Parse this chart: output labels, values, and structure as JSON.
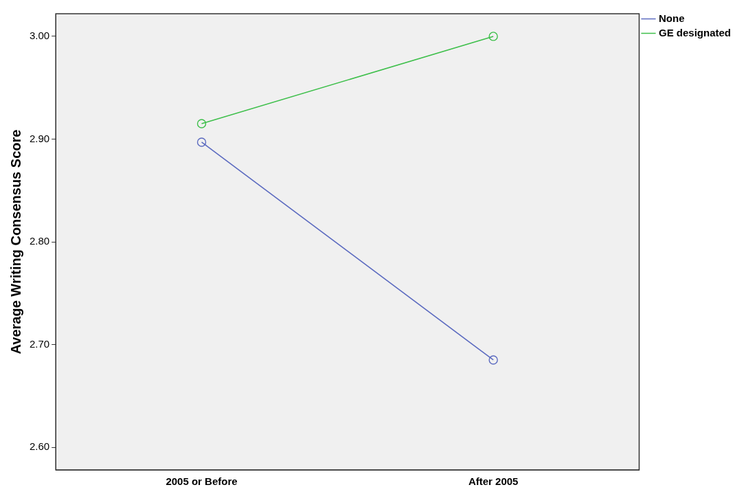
{
  "chart_data": {
    "type": "line",
    "ylabel": "Average Writing Consensus Score",
    "categories": [
      "2005 or Before",
      "After 2005"
    ],
    "series": [
      {
        "name": "None",
        "color": "#5c6bc0",
        "values": [
          2.897,
          2.685
        ]
      },
      {
        "name": "GE designated",
        "color": "#3dbf4a",
        "values": [
          2.915,
          3.0
        ]
      }
    ],
    "ylim": [
      2.578,
      3.022
    ],
    "yticks": [
      {
        "value": 2.6,
        "label": "2.60"
      },
      {
        "value": 2.7,
        "label": "2.70"
      },
      {
        "value": 2.8,
        "label": "2.80"
      },
      {
        "value": 2.9,
        "label": "2.90"
      },
      {
        "value": 3.0,
        "label": "3.00"
      }
    ],
    "grid": false,
    "legend": "top right",
    "marker": "circle",
    "line_style": "solid"
  }
}
